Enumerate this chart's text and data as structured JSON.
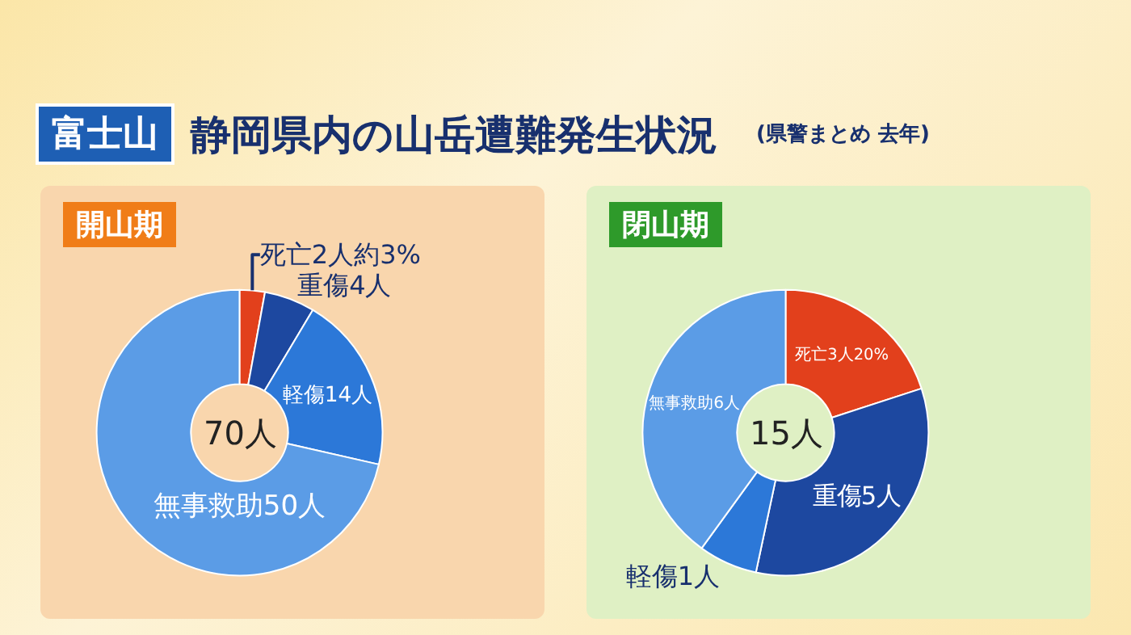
{
  "chart_data": [
    {
      "type": "other",
      "title": "静岡県内の山岳遭難発生状況",
      "annotations": [
        "富士山",
        "(県警まとめ 去年)"
      ]
    },
    {
      "type": "donut",
      "title": "開山期",
      "categories": [
        "死亡",
        "重傷",
        "軽傷",
        "無事救助"
      ],
      "values": [
        2,
        4,
        14,
        50
      ],
      "colors": [
        "#e2401c",
        "#1d48a0",
        "#2c78d8",
        "#5b9ce6"
      ],
      "value_labels": [
        "2人約3%",
        "4人",
        "14人",
        "50人"
      ],
      "annotations": [
        "70人"
      ],
      "legend": false
    },
    {
      "type": "donut",
      "title": "閉山期",
      "categories": [
        "死亡",
        "重傷",
        "軽傷",
        "無事救助"
      ],
      "values": [
        3,
        5,
        1,
        6
      ],
      "colors": [
        "#e2401c",
        "#1d48a0",
        "#2c78d8",
        "#5b9ce6"
      ],
      "value_labels": [
        "3人20%",
        "5人",
        "1人",
        "6人"
      ],
      "annotations": [
        "15人"
      ],
      "legend": false
    }
  ]
}
